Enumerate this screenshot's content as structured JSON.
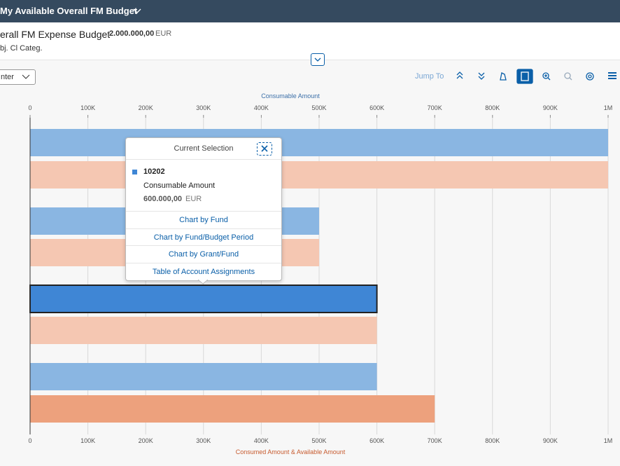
{
  "header": {
    "title": "My Available Overall FM Budget"
  },
  "object": {
    "name": "erall FM Expense Budget",
    "amount": "2.000.000,00",
    "currency": "EUR",
    "subtitle": "bj. Cl Categ."
  },
  "toolbar": {
    "dropdown": "nter",
    "jump_to": "Jump To"
  },
  "chart": {
    "type": "bar",
    "orientation": "horizontal",
    "x_top_label": "Consumable Amount",
    "x_bottom_label": "Consumed Amount & Available Amount",
    "xlim": [
      0,
      1000000
    ],
    "xticks": [
      0,
      {
        "value": 100000,
        "label": "100K"
      },
      {
        "value": 200000,
        "label": "200K"
      },
      {
        "value": 300000,
        "label": "300K"
      },
      {
        "value": 400000,
        "label": "400K"
      },
      {
        "value": 500000,
        "label": "500K"
      },
      {
        "value": 600000,
        "label": "600K"
      },
      {
        "value": 700000,
        "label": "700K"
      },
      {
        "value": 800000,
        "label": "800K"
      },
      {
        "value": 900000,
        "label": "900K"
      },
      {
        "value": 1000000,
        "label": "1M"
      }
    ],
    "grid": true,
    "series": [
      {
        "name": "Consumable Amount",
        "color": "#8ab6e2",
        "values": [
          1000000,
          500000,
          600000,
          600000
        ]
      },
      {
        "name": "Consumed Amount & Available Amount",
        "color": "#f5c7b2",
        "values": [
          1000000,
          500000,
          600000,
          700000
        ]
      }
    ],
    "selected": {
      "series": 0,
      "index": 2,
      "color": "#3f86d5"
    },
    "highlight": {
      "series": 1,
      "index": 3,
      "color": "#eda17d"
    }
  },
  "popover": {
    "title": "Current Selection",
    "item": "10202",
    "measure": "Consumable Amount",
    "amount": "600.000,00",
    "currency": "EUR",
    "links": [
      "Chart by Fund",
      "Chart by Fund/Budget Period",
      "Chart by Grant/Fund",
      "Table of Account Assignments"
    ]
  }
}
